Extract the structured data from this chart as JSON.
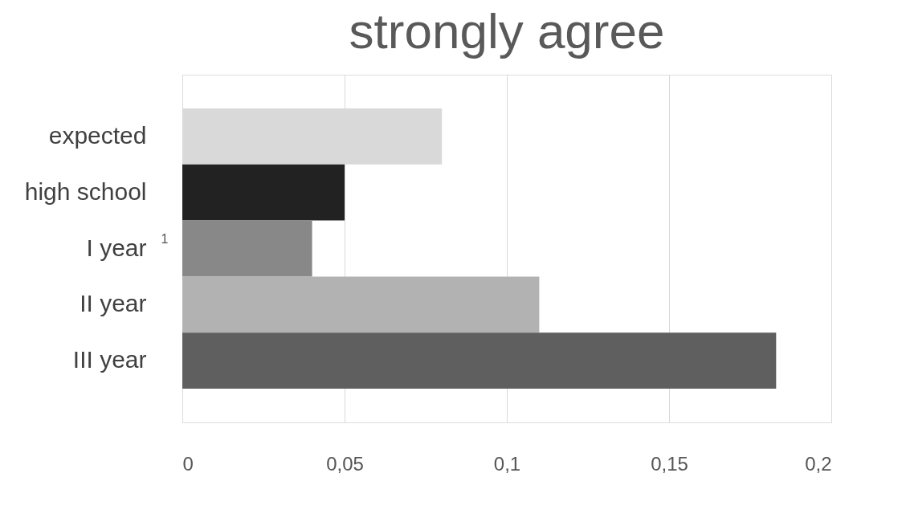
{
  "chart_data": {
    "type": "bar",
    "orientation": "horizontal",
    "title": "strongly agree",
    "categories": [
      "expected",
      "high school",
      "I year",
      "II year",
      "III year"
    ],
    "values": [
      0.08,
      0.05,
      0.04,
      0.11,
      0.183
    ],
    "colors": [
      "#d9d9d9",
      "#222222",
      "#888888",
      "#b2b2b2",
      "#5f5f5f"
    ],
    "xlim": [
      0,
      0.2
    ],
    "xticks": [
      0,
      {
        "value": 0.05,
        "label": "0,05"
      },
      {
        "value": 0.1,
        "label": "0,1"
      },
      {
        "value": 0.15,
        "label": "0,15"
      },
      {
        "value": 0.2,
        "label": "0,2"
      }
    ],
    "grid": "x",
    "annotations": [
      {
        "text": "1",
        "x": 0.0,
        "y": "I year"
      }
    ]
  }
}
